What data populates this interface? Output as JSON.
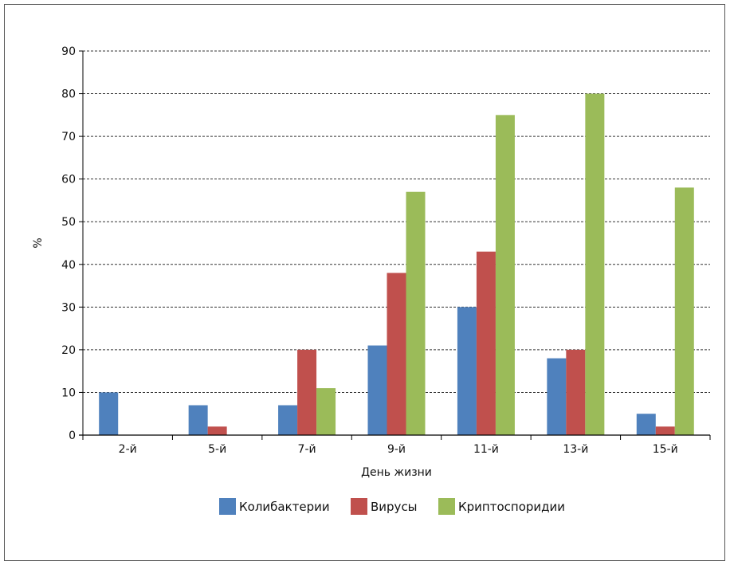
{
  "chart_data": {
    "type": "bar",
    "title": "",
    "xlabel": "День жизни",
    "ylabel": "%",
    "categories": [
      "2-й",
      "5-й",
      "7-й",
      "9-й",
      "11-й",
      "13-й",
      "15-й"
    ],
    "series": [
      {
        "name": "Колибактерии",
        "color": "#4f81bd",
        "values": [
          10,
          7,
          7,
          21,
          30,
          18,
          5
        ]
      },
      {
        "name": "Вирусы",
        "color": "#c0504d",
        "values": [
          0,
          2,
          20,
          38,
          43,
          20,
          2
        ]
      },
      {
        "name": "Криптоспоридии",
        "color": "#9bbb59",
        "values": [
          0,
          0,
          11,
          57,
          75,
          80,
          58
        ]
      }
    ],
    "ylim": [
      0,
      90
    ],
    "yticks": [
      0,
      10,
      20,
      30,
      40,
      50,
      60,
      70,
      80,
      90
    ],
    "grid": true,
    "legend_position": "bottom"
  }
}
